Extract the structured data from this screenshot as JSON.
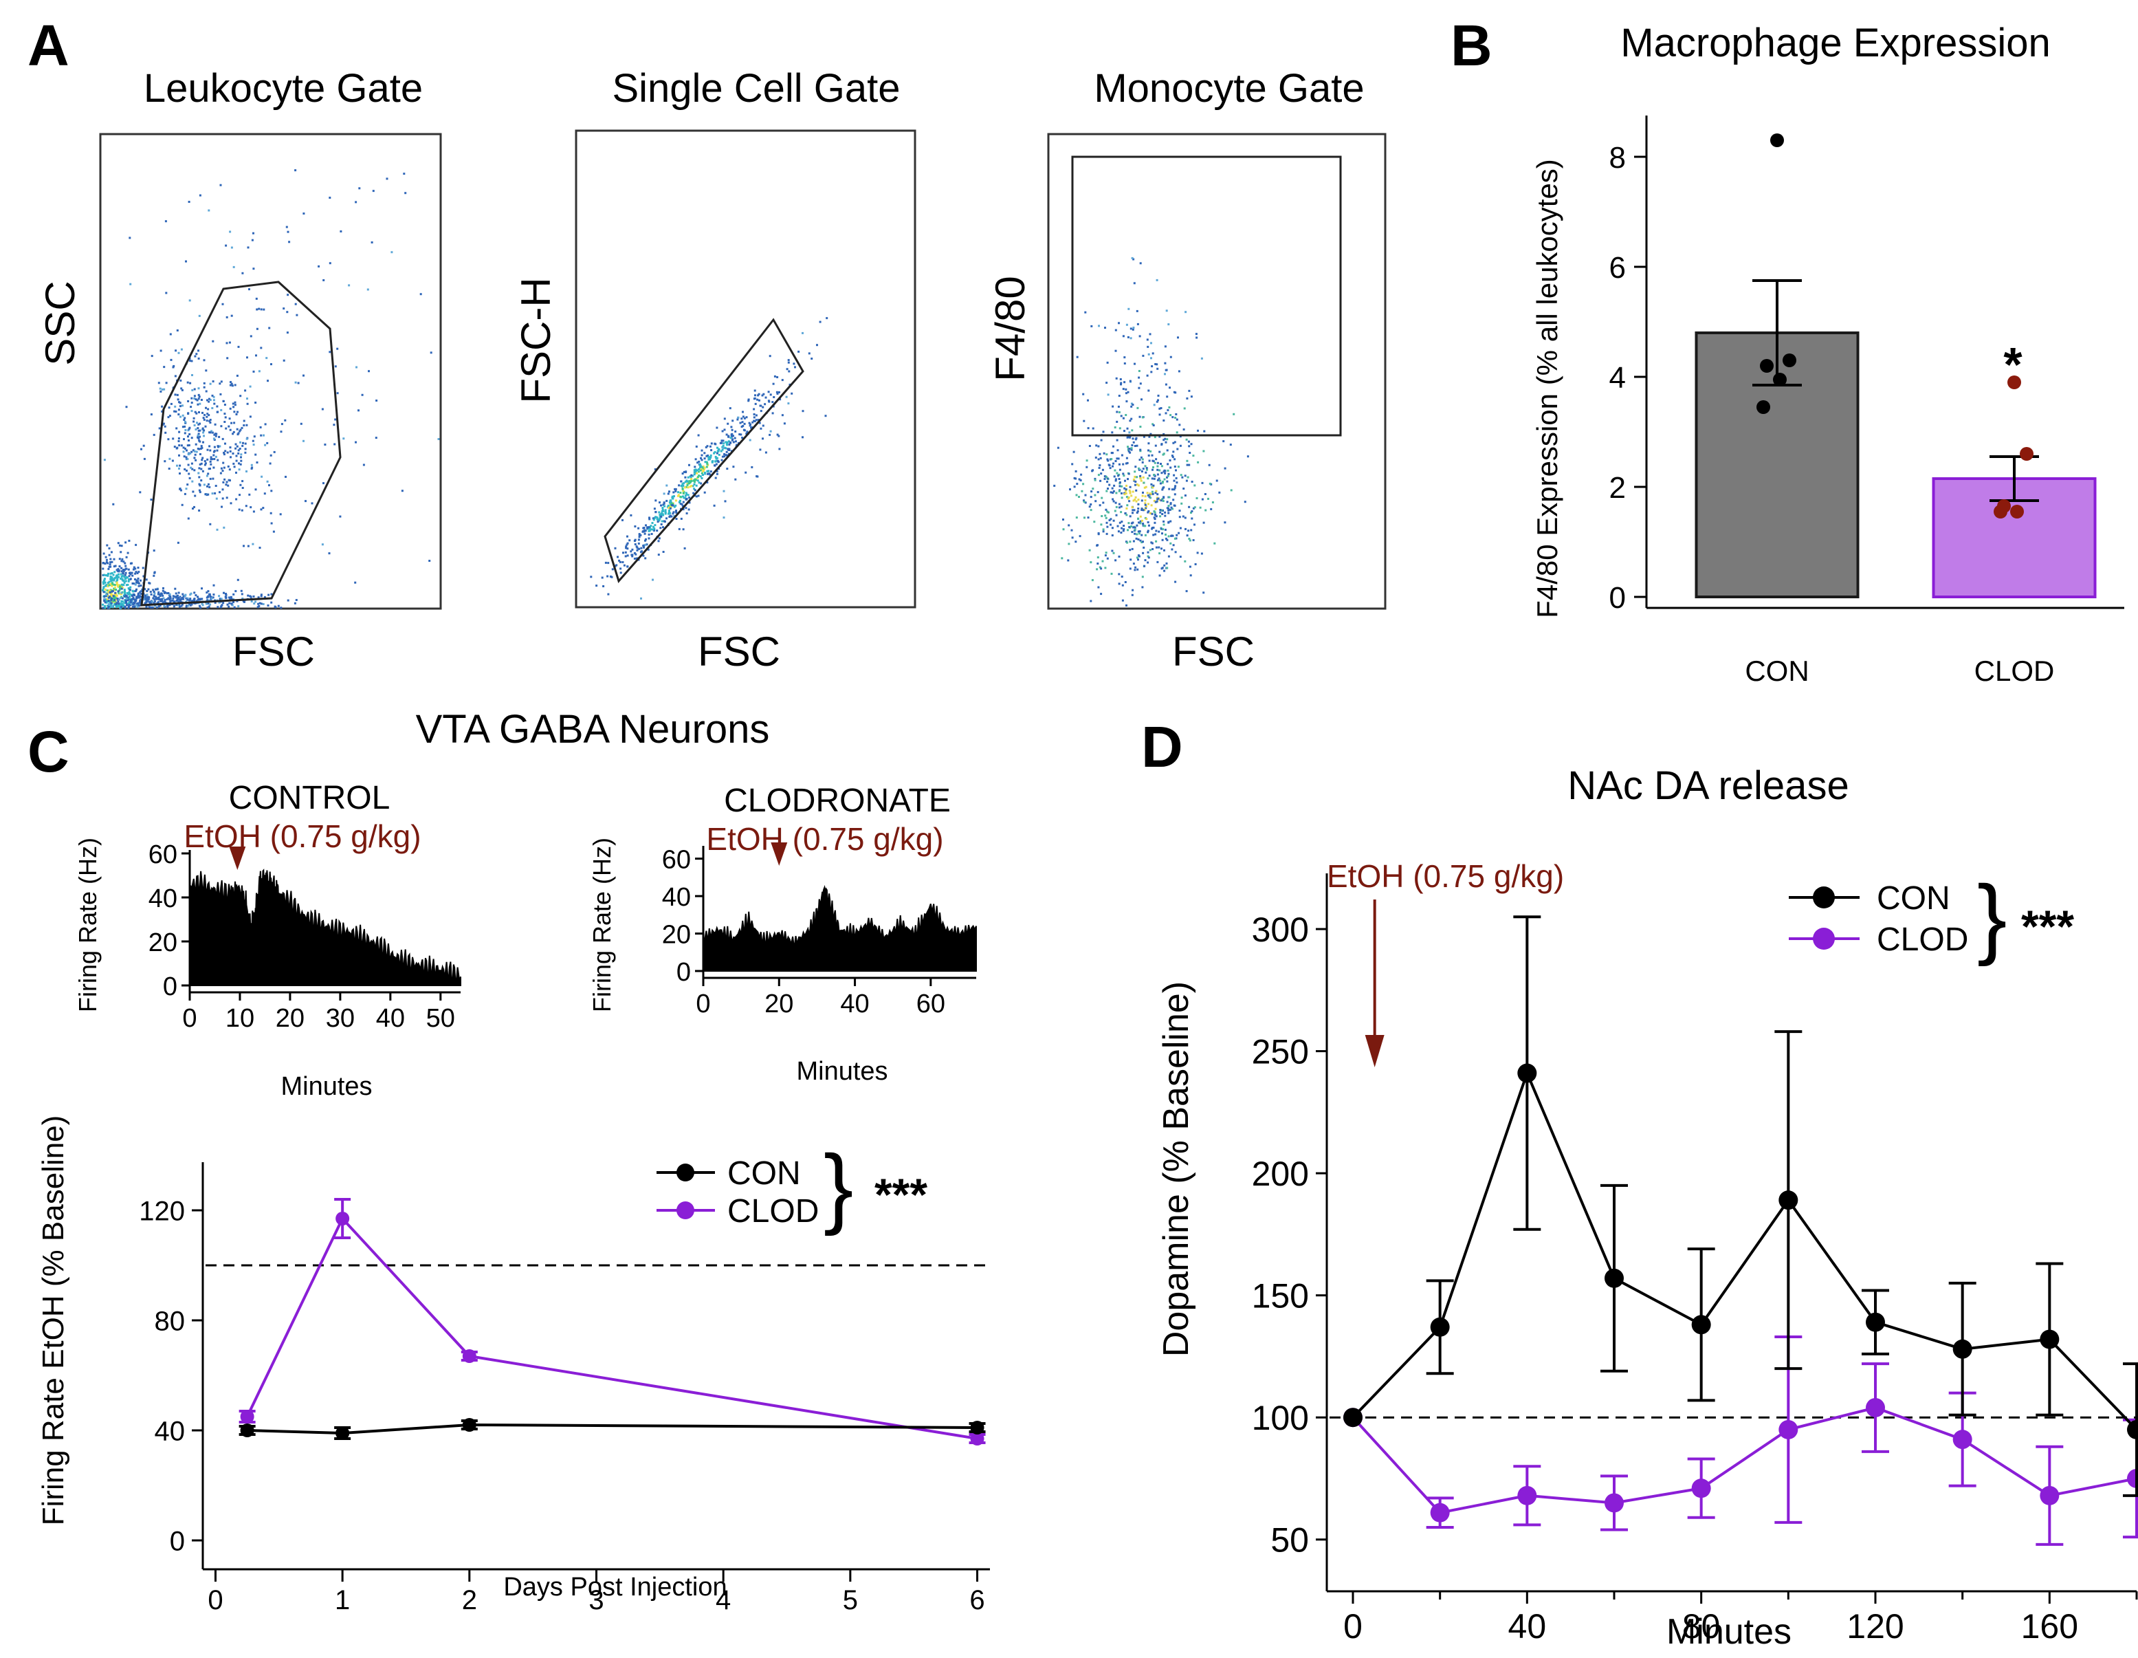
{
  "colors": {
    "con": "#000000",
    "clod": "#8a1ed6",
    "etoh": "#7a1a0f",
    "bar_con": "#7a7a7a",
    "bar_clod": "#c07ce8",
    "clod_dot": "#8b1a0c"
  },
  "panel_a": {
    "letter": "A",
    "plots": [
      {
        "title": "Leukocyte Gate",
        "ylabel": "SSC",
        "xlabel": "FSC"
      },
      {
        "title": "Single Cell Gate",
        "ylabel": "FSC-H",
        "xlabel": "FSC"
      },
      {
        "title": "Monocyte Gate",
        "ylabel": "F4/80",
        "xlabel": "FSC"
      }
    ]
  },
  "chart_data": [
    {
      "id": "B",
      "type": "bar",
      "letter": "B",
      "title": "Macrophage Expression",
      "ylabel": "F4/80 Expression (% all leukocytes)",
      "categories": [
        "CON",
        "CLOD"
      ],
      "values": [
        4.8,
        2.15
      ],
      "sem": [
        0.95,
        0.4
      ],
      "points": [
        [
          8.3,
          4.3,
          4.2,
          3.95,
          3.45
        ],
        [
          3.9,
          2.6,
          1.65,
          1.55,
          1.55
        ]
      ],
      "ylim": [
        0,
        8.5
      ],
      "yticks": [
        0,
        2,
        4,
        6,
        8
      ],
      "annotation": "*"
    },
    {
      "id": "C",
      "type": "line",
      "letter": "C",
      "title": "VTA GABA Neurons",
      "insets": [
        {
          "label": "CONTROL",
          "marker": "EtOH (0.75 g/kg)",
          "ylabel": "Firing Rate (Hz)",
          "xlabel": "Minutes",
          "xticks": [
            0,
            10,
            20,
            30,
            40,
            50
          ],
          "yticks": [
            0,
            20,
            40,
            60
          ],
          "xlim": [
            0,
            54
          ],
          "ylim": [
            0,
            60
          ],
          "injection_min": 9.5,
          "x": [
            0,
            2,
            4,
            6,
            8,
            9.5,
            11,
            12,
            13,
            14,
            15,
            16,
            17,
            18,
            20,
            22,
            24,
            26,
            28,
            30,
            32,
            34,
            36,
            38,
            40,
            42,
            44,
            46,
            48,
            50,
            52,
            54
          ],
          "values": [
            45,
            47,
            44,
            43,
            42,
            44,
            40,
            28,
            32,
            48,
            49,
            47,
            45,
            42,
            38,
            33,
            30,
            28,
            26,
            25,
            24,
            22,
            20,
            18,
            14,
            12,
            10,
            9,
            8,
            7,
            6,
            4
          ]
        },
        {
          "label": "CLODRONATE",
          "marker": "EtOH (0.75 g/kg)",
          "ylabel": "Firing Rate (Hz)",
          "xlabel": "Minutes",
          "xticks": [
            0,
            20,
            40,
            60
          ],
          "yticks": [
            0,
            20,
            40,
            60
          ],
          "xlim": [
            0,
            72
          ],
          "ylim": [
            0,
            65
          ],
          "injection_min": 20,
          "x": [
            0,
            4,
            8,
            12,
            16,
            20,
            24,
            28,
            30,
            32,
            34,
            36,
            40,
            44,
            48,
            52,
            56,
            60,
            64,
            68,
            72
          ],
          "values": [
            18,
            22,
            17,
            27,
            16,
            20,
            15,
            22,
            30,
            45,
            32,
            22,
            20,
            26,
            18,
            25,
            20,
            35,
            22,
            20,
            24
          ]
        }
      ],
      "main": {
        "ylabel": "Firing Rate EtOH (% Baseline)",
        "xlabel": "Days Post Injection",
        "xticks": [
          0,
          1,
          2,
          3,
          4,
          5,
          6
        ],
        "yticks": [
          0,
          40,
          80,
          120
        ],
        "xlim": [
          -0.1,
          6.1
        ],
        "ylim": [
          -5,
          135
        ],
        "baseline": 100,
        "series": [
          {
            "name": "CON",
            "x": [
              0.25,
              1,
              2,
              6
            ],
            "values": [
              40,
              39,
              42,
              41
            ],
            "err": [
              1.5,
              2,
              1.5,
              1.5
            ]
          },
          {
            "name": "CLOD",
            "x": [
              0.25,
              1,
              2,
              6
            ],
            "values": [
              45,
              117,
              67,
              37
            ],
            "err": [
              2,
              7,
              1.5,
              1.5
            ]
          }
        ],
        "significance": "***"
      }
    },
    {
      "id": "D",
      "type": "line",
      "letter": "D",
      "title": "NAc DA release",
      "ylabel": "Dopamine (% Baseline)",
      "xlabel": "Minutes",
      "marker": "EtOH (0.75 g/kg)",
      "injection_min": 5,
      "xticks": [
        0,
        40,
        80,
        120,
        160
      ],
      "minor_xticks": [
        20,
        60,
        100,
        140,
        180
      ],
      "yticks": [
        50,
        100,
        150,
        200,
        250,
        300
      ],
      "xlim": [
        -6,
        180
      ],
      "ylim": [
        35,
        320
      ],
      "baseline": 100,
      "series": [
        {
          "name": "CON",
          "x": [
            0,
            20,
            40,
            60,
            80,
            100,
            120,
            140,
            160,
            180
          ],
          "values": [
            100,
            137,
            241,
            157,
            138,
            189,
            139,
            128,
            132,
            95
          ],
          "err": [
            0,
            19,
            64,
            38,
            31,
            69,
            13,
            27,
            31,
            27
          ]
        },
        {
          "name": "CLOD",
          "x": [
            0,
            20,
            40,
            60,
            80,
            100,
            120,
            140,
            160,
            180
          ],
          "values": [
            100,
            61,
            68,
            65,
            71,
            95,
            104,
            91,
            68,
            75
          ],
          "err": [
            0,
            6,
            12,
            11,
            12,
            38,
            18,
            19,
            20,
            24
          ]
        }
      ],
      "significance": "***"
    }
  ]
}
